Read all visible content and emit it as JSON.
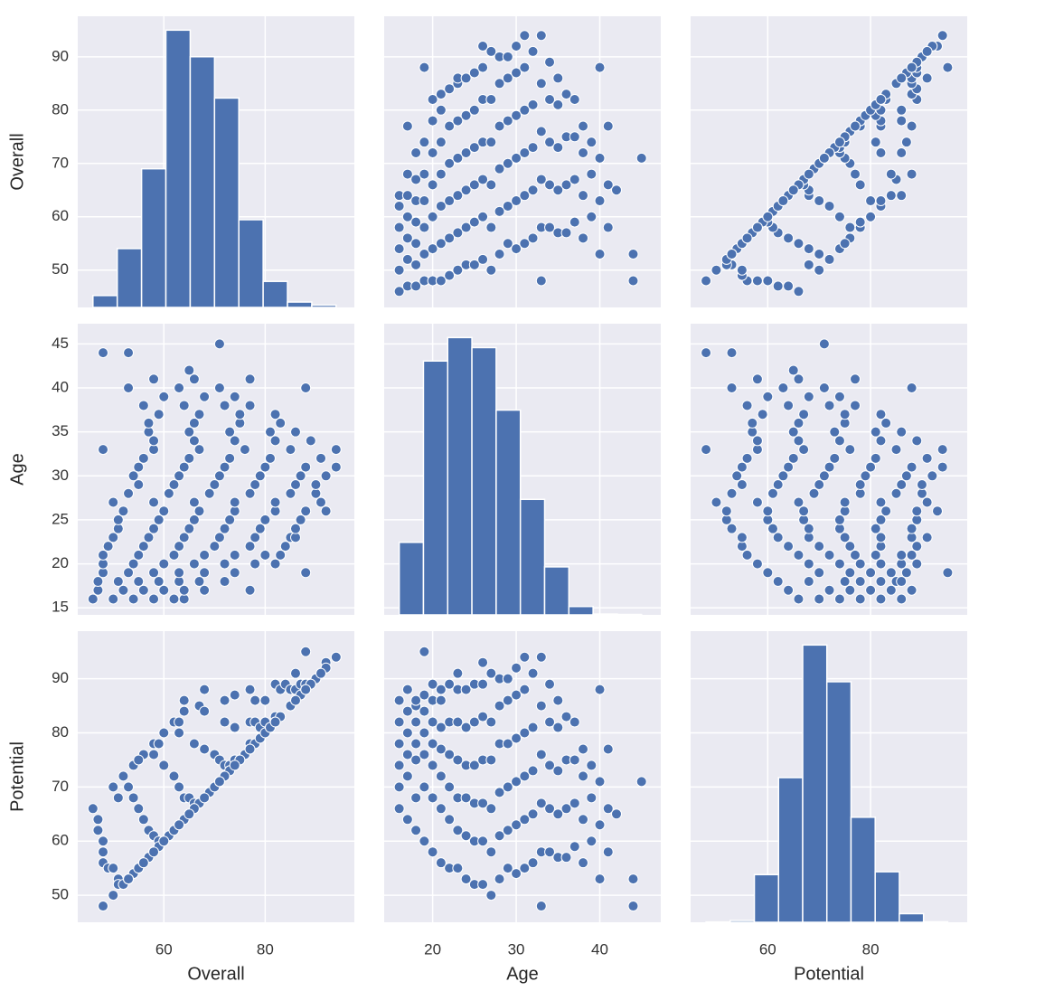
{
  "chart_data": {
    "type": "pairplot",
    "variables": [
      "Overall",
      "Age",
      "Potential"
    ],
    "color": "#4c72b0",
    "background": "#eaeaf2",
    "grid": true,
    "axes": [
      {
        "lim": [
          43,
          97.6
        ],
        "xticks": [
          60,
          80
        ],
        "yticks": [
          50,
          60,
          70,
          80,
          90
        ]
      },
      {
        "lim": [
          14.2,
          47.3
        ],
        "xticks": [
          20,
          30,
          40
        ],
        "yticks": [
          15,
          20,
          25,
          30,
          35,
          40,
          45
        ]
      },
      {
        "lim": [
          45,
          98.8
        ],
        "xticks": [
          60,
          80
        ],
        "yticks": [
          50,
          60,
          70,
          80,
          90
        ]
      }
    ],
    "histograms": [
      {
        "bins": [
          46,
          50.8,
          55.6,
          60.4,
          65.2,
          70,
          74.8,
          79.6,
          84.4,
          89.2,
          94
        ],
        "counts": [
          210,
          1040,
          2450,
          4900,
          4430,
          3700,
          1550,
          460,
          95,
          40
        ]
      },
      {
        "bins": [
          16,
          18.9,
          21.8,
          24.7,
          27.6,
          30.5,
          33.4,
          36.3,
          39.2,
          42.1,
          45
        ],
        "counts": [
          1300,
          4550,
          4970,
          4790,
          3670,
          2070,
          860,
          150,
          15,
          8
        ]
      },
      {
        "bins": [
          48,
          52.7,
          57.4,
          62.1,
          66.8,
          71.5,
          76.2,
          80.9,
          85.6,
          90.3,
          95
        ],
        "counts": [
          5,
          30,
          830,
          2520,
          4830,
          4190,
          1830,
          880,
          150,
          8
        ]
      }
    ],
    "points": [
      [
        46,
        16,
        66
      ],
      [
        50,
        16,
        70
      ],
      [
        54,
        16,
        74
      ],
      [
        58,
        16,
        78
      ],
      [
        62,
        16,
        82
      ],
      [
        64,
        16,
        86
      ],
      [
        47,
        17,
        64
      ],
      [
        52,
        17,
        72
      ],
      [
        56,
        17,
        76
      ],
      [
        60,
        17,
        80
      ],
      [
        64,
        17,
        84
      ],
      [
        68,
        17,
        88
      ],
      [
        77,
        17,
        88
      ],
      [
        47,
        18,
        62
      ],
      [
        51,
        18,
        68
      ],
      [
        55,
        18,
        75
      ],
      [
        59,
        18,
        78
      ],
      [
        63,
        18,
        82
      ],
      [
        67,
        18,
        85
      ],
      [
        72,
        18,
        86
      ],
      [
        48,
        19,
        60
      ],
      [
        53,
        19,
        70
      ],
      [
        58,
        19,
        76
      ],
      [
        63,
        19,
        80
      ],
      [
        68,
        19,
        84
      ],
      [
        74,
        19,
        87
      ],
      [
        88,
        19,
        95
      ],
      [
        48,
        20,
        58
      ],
      [
        54,
        20,
        68
      ],
      [
        60,
        20,
        74
      ],
      [
        66,
        20,
        78
      ],
      [
        72,
        20,
        82
      ],
      [
        78,
        20,
        86
      ],
      [
        82,
        20,
        89
      ],
      [
        48,
        21,
        56
      ],
      [
        55,
        21,
        66
      ],
      [
        62,
        21,
        72
      ],
      [
        68,
        21,
        77
      ],
      [
        74,
        21,
        81
      ],
      [
        80,
        21,
        86
      ],
      [
        83,
        21,
        88
      ],
      [
        49,
        22,
        55
      ],
      [
        56,
        22,
        64
      ],
      [
        63,
        22,
        70
      ],
      [
        70,
        22,
        76
      ],
      [
        77,
        22,
        82
      ],
      [
        84,
        22,
        89
      ],
      [
        50,
        23,
        55
      ],
      [
        57,
        23,
        62
      ],
      [
        64,
        23,
        68
      ],
      [
        71,
        23,
        75
      ],
      [
        78,
        23,
        82
      ],
      [
        85,
        23,
        88
      ],
      [
        86,
        23,
        91
      ],
      [
        51,
        24,
        53
      ],
      [
        58,
        24,
        61
      ],
      [
        65,
        24,
        68
      ],
      [
        72,
        24,
        74
      ],
      [
        79,
        24,
        81
      ],
      [
        86,
        24,
        88
      ],
      [
        51,
        25,
        52
      ],
      [
        59,
        25,
        60
      ],
      [
        66,
        25,
        67
      ],
      [
        73,
        25,
        74
      ],
      [
        80,
        25,
        82
      ],
      [
        87,
        25,
        89
      ],
      [
        52,
        26,
        52
      ],
      [
        60,
        26,
        60
      ],
      [
        67,
        26,
        67
      ],
      [
        74,
        26,
        75
      ],
      [
        82,
        26,
        83
      ],
      [
        88,
        26,
        89
      ],
      [
        92,
        26,
        93
      ],
      [
        50,
        27,
        50
      ],
      [
        58,
        27,
        58
      ],
      [
        66,
        27,
        66
      ],
      [
        74,
        27,
        75
      ],
      [
        82,
        27,
        82
      ],
      [
        91,
        27,
        91
      ],
      [
        53,
        28,
        53
      ],
      [
        61,
        28,
        61
      ],
      [
        69,
        28,
        69
      ],
      [
        77,
        28,
        78
      ],
      [
        85,
        28,
        85
      ],
      [
        90,
        28,
        90
      ],
      [
        55,
        29,
        55
      ],
      [
        62,
        29,
        62
      ],
      [
        70,
        29,
        70
      ],
      [
        78,
        29,
        78
      ],
      [
        86,
        29,
        86
      ],
      [
        90,
        29,
        90
      ],
      [
        54,
        30,
        54
      ],
      [
        63,
        30,
        63
      ],
      [
        71,
        30,
        71
      ],
      [
        79,
        30,
        79
      ],
      [
        87,
        30,
        87
      ],
      [
        92,
        30,
        92
      ],
      [
        55,
        31,
        55
      ],
      [
        64,
        31,
        64
      ],
      [
        72,
        31,
        72
      ],
      [
        80,
        31,
        80
      ],
      [
        88,
        31,
        88
      ],
      [
        94,
        31,
        94
      ],
      [
        56,
        32,
        56
      ],
      [
        65,
        32,
        65
      ],
      [
        73,
        32,
        73
      ],
      [
        81,
        32,
        81
      ],
      [
        91,
        32,
        91
      ],
      [
        48,
        33,
        48
      ],
      [
        58,
        33,
        58
      ],
      [
        67,
        33,
        67
      ],
      [
        76,
        33,
        76
      ],
      [
        85,
        33,
        85
      ],
      [
        94,
        33,
        94
      ],
      [
        58,
        34,
        58
      ],
      [
        66,
        34,
        66
      ],
      [
        74,
        34,
        74
      ],
      [
        82,
        34,
        82
      ],
      [
        89,
        34,
        89
      ],
      [
        57,
        35,
        57
      ],
      [
        65,
        35,
        65
      ],
      [
        73,
        35,
        73
      ],
      [
        81,
        35,
        81
      ],
      [
        86,
        35,
        86
      ],
      [
        57,
        36,
        57
      ],
      [
        66,
        36,
        66
      ],
      [
        75,
        36,
        75
      ],
      [
        83,
        36,
        83
      ],
      [
        59,
        37,
        59
      ],
      [
        67,
        37,
        67
      ],
      [
        75,
        37,
        75
      ],
      [
        82,
        37,
        82
      ],
      [
        56,
        38,
        56
      ],
      [
        64,
        38,
        64
      ],
      [
        72,
        38,
        72
      ],
      [
        77,
        38,
        77
      ],
      [
        60,
        39,
        60
      ],
      [
        68,
        39,
        68
      ],
      [
        74,
        39,
        74
      ],
      [
        53,
        40,
        53
      ],
      [
        63,
        40,
        63
      ],
      [
        71,
        40,
        71
      ],
      [
        88,
        40,
        88
      ],
      [
        58,
        41,
        58
      ],
      [
        66,
        41,
        66
      ],
      [
        77,
        41,
        77
      ],
      [
        65,
        42,
        65
      ],
      [
        48,
        44,
        48
      ],
      [
        53,
        44,
        53
      ],
      [
        71,
        45,
        71
      ]
    ]
  }
}
